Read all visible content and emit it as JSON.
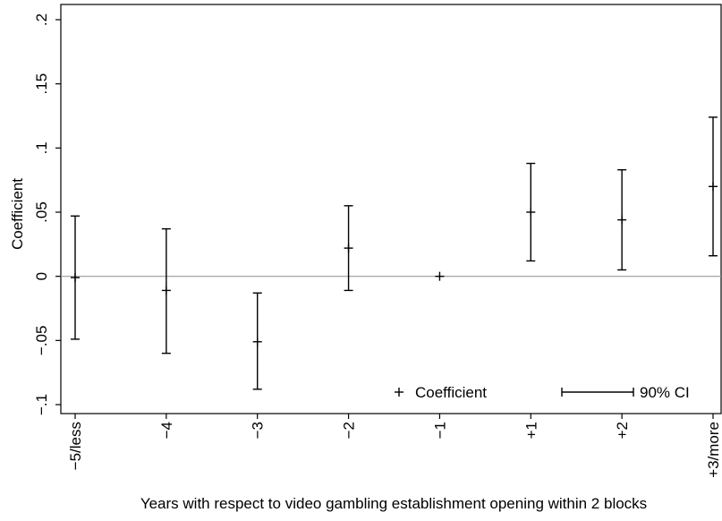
{
  "chart_data": {
    "type": "scatter",
    "title": "",
    "xlabel": "Years with respect to video gambling establishment opening within 2 blocks",
    "ylabel": "Coefficient",
    "categories": [
      "−5/less",
      "−4",
      "−3",
      "−2",
      "−1",
      "+1",
      "+2",
      "+3/more"
    ],
    "ylim": [
      -0.1,
      0.2
    ],
    "yticks": [
      -0.1,
      -0.05,
      0,
      0.05,
      0.1,
      0.15,
      0.2
    ],
    "ytick_labels": [
      "−.1",
      "−.05",
      "0",
      ".05",
      ".1",
      ".15",
      ".2"
    ],
    "reference_line_y": 0,
    "grid": false,
    "legend": {
      "placement": "bottom-right",
      "entries": [
        "Coefficient",
        "90% CI"
      ]
    },
    "series": [
      {
        "name": "Coefficient",
        "values": [
          -0.001,
          -0.011,
          -0.051,
          0.022,
          0.0,
          0.05,
          0.044,
          0.07
        ]
      },
      {
        "name": "90% CI",
        "lower": [
          -0.049,
          -0.06,
          -0.088,
          -0.011,
          null,
          0.012,
          0.005,
          0.016
        ],
        "upper": [
          0.047,
          0.037,
          -0.013,
          0.055,
          null,
          0.088,
          0.083,
          0.124
        ]
      }
    ],
    "colors": {
      "marks": "#000000",
      "zero_line": "#999999",
      "frame": "#000000"
    }
  }
}
